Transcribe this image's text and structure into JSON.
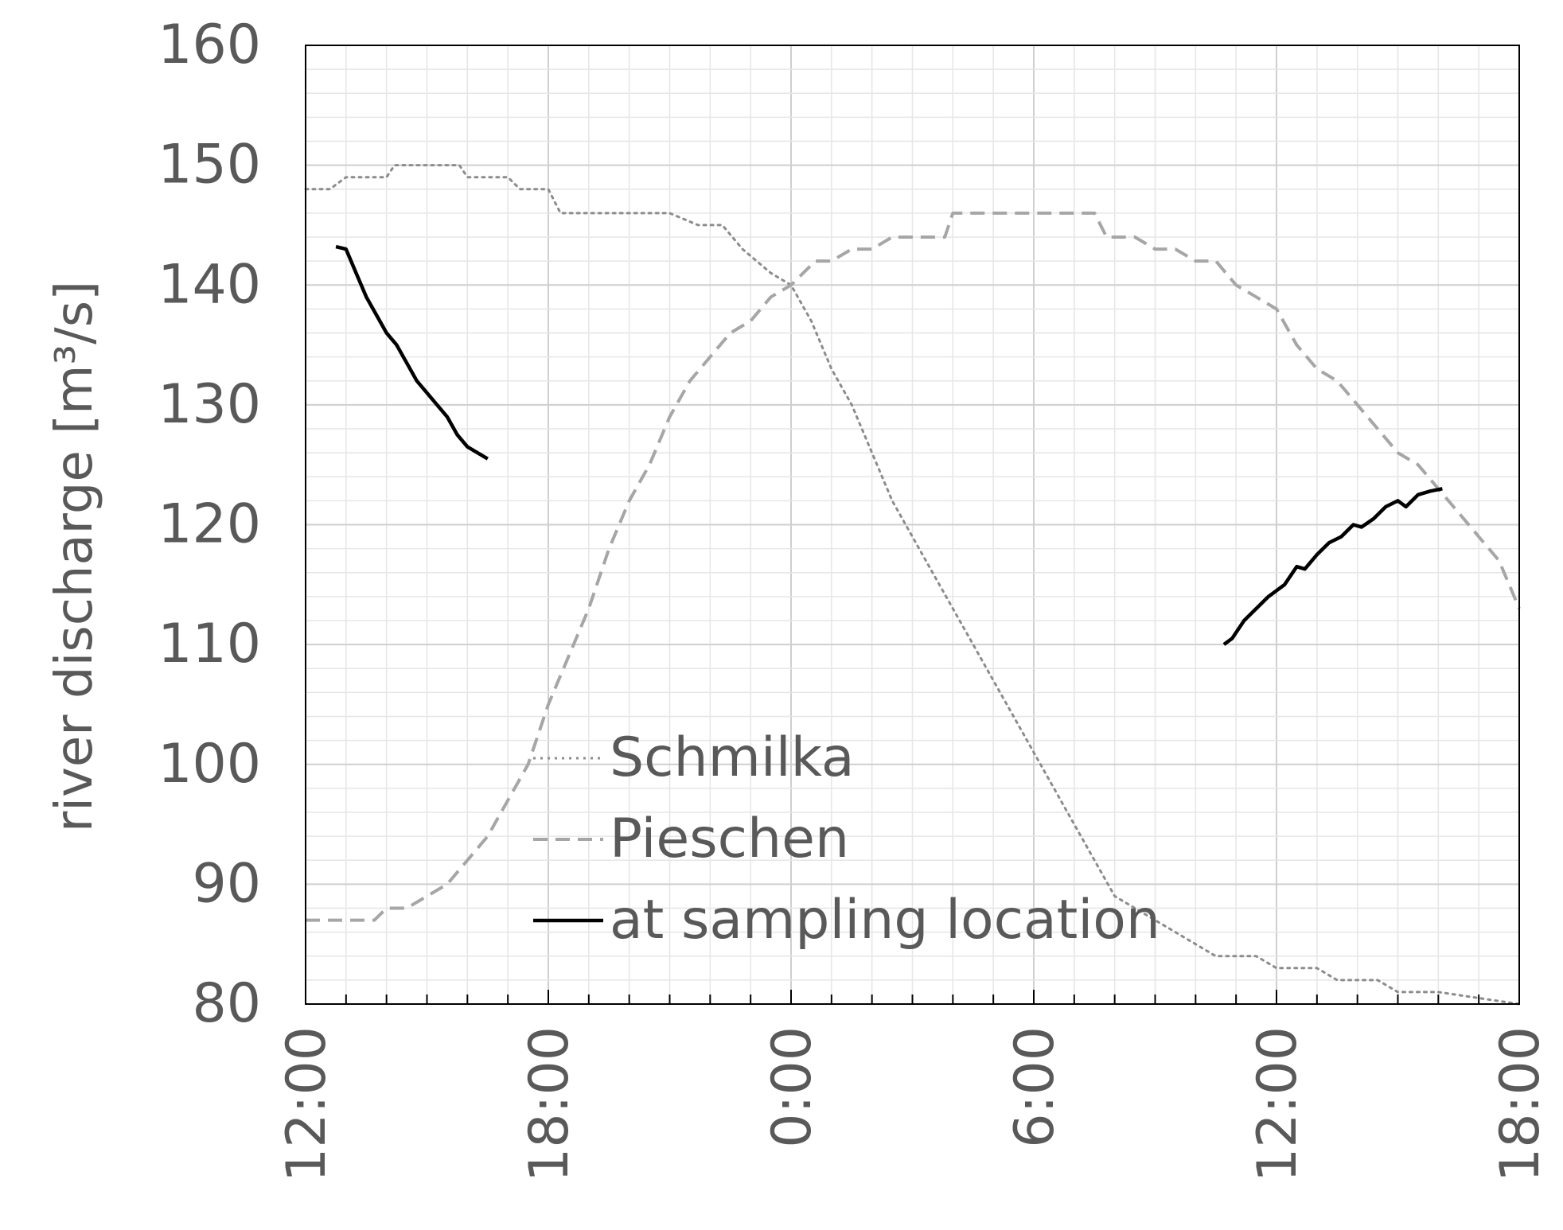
{
  "chart_data": {
    "type": "line",
    "title": "",
    "xlabel": "",
    "ylabel": "river discharge [m³/s]",
    "ylim": [
      80,
      160
    ],
    "xlim_hours": [
      0,
      30
    ],
    "yticks": [
      80,
      90,
      100,
      110,
      120,
      130,
      140,
      150,
      160
    ],
    "xticks": [
      {
        "hour": 0,
        "label": "12:00"
      },
      {
        "hour": 6,
        "label": "18:00"
      },
      {
        "hour": 12,
        "label": "0:00"
      },
      {
        "hour": 18,
        "label": "6:00"
      },
      {
        "hour": 24,
        "label": "12:00"
      },
      {
        "hour": 30,
        "label": "18:00"
      }
    ],
    "grid": true,
    "legend": "center",
    "series": [
      {
        "name": "Schmilka",
        "style": "dotted",
        "color": "#8c8c8c",
        "points": [
          [
            0,
            148
          ],
          [
            0.6,
            148
          ],
          [
            1,
            149
          ],
          [
            2,
            149
          ],
          [
            2.2,
            150
          ],
          [
            3.8,
            150
          ],
          [
            4,
            149
          ],
          [
            5,
            149
          ],
          [
            5.3,
            148
          ],
          [
            6,
            148
          ],
          [
            6.3,
            146
          ],
          [
            7,
            146
          ],
          [
            9,
            146
          ],
          [
            9.7,
            145
          ],
          [
            10.3,
            145
          ],
          [
            10.8,
            143
          ],
          [
            11.5,
            141
          ],
          [
            12,
            140
          ],
          [
            12.5,
            137
          ],
          [
            13,
            133
          ],
          [
            13.5,
            130
          ],
          [
            14,
            126
          ],
          [
            14.5,
            122
          ],
          [
            15,
            119
          ],
          [
            15.5,
            116
          ],
          [
            16,
            113
          ],
          [
            16.5,
            110
          ],
          [
            17,
            107
          ],
          [
            17.5,
            104
          ],
          [
            18,
            101
          ],
          [
            18.5,
            98
          ],
          [
            19,
            95
          ],
          [
            19.5,
            92
          ],
          [
            20,
            89
          ],
          [
            20.5,
            88
          ],
          [
            21,
            87
          ],
          [
            21.5,
            86
          ],
          [
            22,
            85
          ],
          [
            22.5,
            84
          ],
          [
            23.5,
            84
          ],
          [
            24,
            83
          ],
          [
            25,
            83
          ],
          [
            25.5,
            82
          ],
          [
            26.5,
            82
          ],
          [
            27,
            81
          ],
          [
            28,
            81
          ],
          [
            29,
            80.5
          ],
          [
            30,
            80
          ]
        ]
      },
      {
        "name": "Pieschen",
        "style": "dashed",
        "color": "#a6a6a6",
        "points": [
          [
            0,
            87
          ],
          [
            1.7,
            87
          ],
          [
            2,
            88
          ],
          [
            2.5,
            88
          ],
          [
            3,
            89
          ],
          [
            3.5,
            90
          ],
          [
            4,
            92
          ],
          [
            4.5,
            94
          ],
          [
            5,
            97
          ],
          [
            5.5,
            100
          ],
          [
            6,
            105
          ],
          [
            6.5,
            109
          ],
          [
            7,
            113
          ],
          [
            7.5,
            118
          ],
          [
            8,
            122
          ],
          [
            8.5,
            125
          ],
          [
            9,
            129
          ],
          [
            9.5,
            132
          ],
          [
            10,
            134
          ],
          [
            10.5,
            136
          ],
          [
            11,
            137
          ],
          [
            11.5,
            139
          ],
          [
            12,
            140
          ],
          [
            12.6,
            142
          ],
          [
            13,
            142
          ],
          [
            13.5,
            143
          ],
          [
            14,
            143
          ],
          [
            14.5,
            144
          ],
          [
            15.8,
            144
          ],
          [
            16,
            146
          ],
          [
            19.5,
            146
          ],
          [
            19.8,
            144
          ],
          [
            20.5,
            144
          ],
          [
            21,
            143
          ],
          [
            21.5,
            143
          ],
          [
            22,
            142
          ],
          [
            22.5,
            142
          ],
          [
            23,
            140
          ],
          [
            23.5,
            139
          ],
          [
            24,
            138
          ],
          [
            24.5,
            135
          ],
          [
            25,
            133
          ],
          [
            25.5,
            132
          ],
          [
            26,
            130
          ],
          [
            26.5,
            128
          ],
          [
            27,
            126
          ],
          [
            27.5,
            125
          ],
          [
            28,
            123
          ],
          [
            28.5,
            121
          ],
          [
            29,
            119
          ],
          [
            29.5,
            117
          ],
          [
            30,
            113
          ]
        ]
      },
      {
        "name": "at sampling location",
        "style": "solid",
        "color": "#000000",
        "segments": [
          [
            [
              0.75,
              143.2
            ],
            [
              1,
              143
            ],
            [
              1.25,
              141
            ],
            [
              1.5,
              139
            ],
            [
              1.75,
              137.5
            ],
            [
              2,
              136
            ],
            [
              2.25,
              135
            ],
            [
              2.5,
              133.5
            ],
            [
              2.75,
              132
            ],
            [
              3,
              131
            ],
            [
              3.25,
              130
            ],
            [
              3.5,
              129
            ],
            [
              3.75,
              127.5
            ],
            [
              4,
              126.5
            ],
            [
              4.5,
              125.5
            ]
          ],
          [
            [
              22.7,
              110
            ],
            [
              22.9,
              110.5
            ],
            [
              23.2,
              112
            ],
            [
              23.5,
              113
            ],
            [
              23.8,
              114
            ],
            [
              24.2,
              115
            ],
            [
              24.5,
              116.5
            ],
            [
              24.7,
              116.3
            ],
            [
              25,
              117.5
            ],
            [
              25.3,
              118.5
            ],
            [
              25.6,
              119
            ],
            [
              25.9,
              120
            ],
            [
              26.1,
              119.8
            ],
            [
              26.4,
              120.5
            ],
            [
              26.7,
              121.5
            ],
            [
              27,
              122
            ],
            [
              27.2,
              121.5
            ],
            [
              27.5,
              122.5
            ],
            [
              27.8,
              122.8
            ],
            [
              28.1,
              123
            ]
          ]
        ]
      }
    ]
  }
}
